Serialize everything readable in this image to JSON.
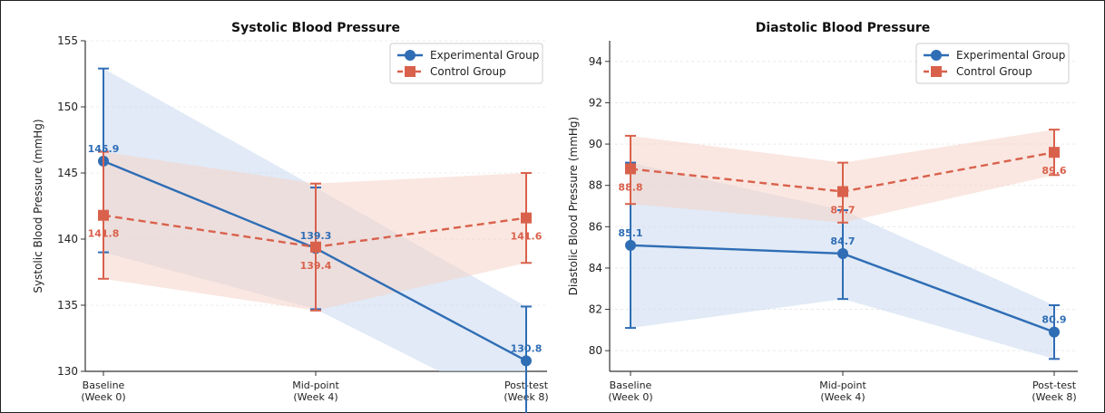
{
  "colors": {
    "experimental": "#2f6db5",
    "control": "#d9614c",
    "experimental_band": "#c8d8ef",
    "control_band": "#f6d3c9"
  },
  "chart_data": [
    {
      "type": "line",
      "title": "Systolic Blood Pressure",
      "ylabel": "Systolic Blood Pressure (mmHg)",
      "xlabel": "",
      "categories": [
        "Baseline\n(Week 0)",
        "Mid-point\n(Week 4)",
        "Post-test\n(Week 8)"
      ],
      "ylim": [
        130,
        155
      ],
      "yticks": [
        130,
        135,
        140,
        145,
        150,
        155
      ],
      "grid": "y",
      "legend": "top-right",
      "series": [
        {
          "name": "Experimental Group",
          "style": "solid",
          "marker": "circle",
          "values": [
            145.9,
            139.3,
            130.8
          ],
          "error_low": [
            139.0,
            134.7,
            126.7
          ],
          "error_high": [
            152.9,
            143.9,
            134.9
          ],
          "labels": [
            "145.9",
            "139.3",
            "130.8"
          ]
        },
        {
          "name": "Control Group",
          "style": "dashed",
          "marker": "square",
          "values": [
            141.8,
            139.4,
            141.6
          ],
          "error_low": [
            137.0,
            134.6,
            138.2
          ],
          "error_high": [
            146.6,
            144.2,
            145.0
          ],
          "labels": [
            "141.8",
            "139.4",
            "141.6"
          ]
        }
      ]
    },
    {
      "type": "line",
      "title": "Diastolic Blood Pressure",
      "ylabel": "Diastolic Blood Pressure (mmHg)",
      "xlabel": "",
      "categories": [
        "Baseline\n(Week 0)",
        "Mid-point\n(Week 4)",
        "Post-test\n(Week 8)"
      ],
      "ylim": [
        79,
        95
      ],
      "yticks": [
        80,
        82,
        84,
        86,
        88,
        90,
        92,
        94
      ],
      "grid": "y",
      "legend": "top-right",
      "series": [
        {
          "name": "Experimental Group",
          "style": "solid",
          "marker": "circle",
          "values": [
            85.1,
            84.7,
            80.9
          ],
          "error_low": [
            81.1,
            82.5,
            79.6
          ],
          "error_high": [
            89.1,
            86.8,
            82.2
          ],
          "labels": [
            "85.1",
            "84.7",
            "80.9"
          ]
        },
        {
          "name": "Control Group",
          "style": "dashed",
          "marker": "square",
          "values": [
            88.8,
            87.7,
            89.6
          ],
          "error_low": [
            87.1,
            86.2,
            88.5
          ],
          "error_high": [
            90.4,
            89.1,
            90.7
          ],
          "labels": [
            "88.8",
            "87.7",
            "89.6"
          ]
        }
      ]
    }
  ]
}
